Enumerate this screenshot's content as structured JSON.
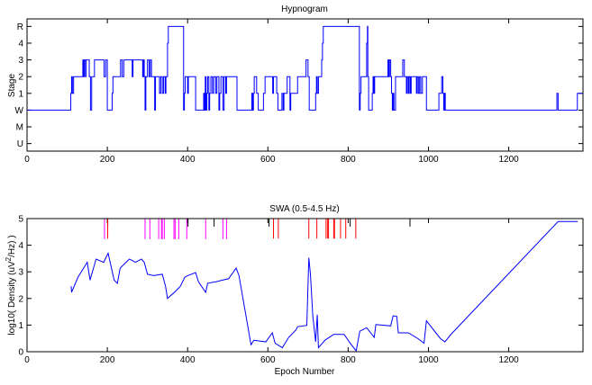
{
  "chart_data": [
    {
      "type": "line",
      "title": "Hypnogram",
      "xlabel": "",
      "ylabel": "Stage",
      "xlim": [
        0,
        1385
      ],
      "ylim": [
        -2.45,
        5.45
      ],
      "xticks": [
        0,
        200,
        400,
        600,
        800,
        1000,
        1200
      ],
      "xticklabels": [
        "0",
        "200",
        "400",
        "600",
        "800",
        "1000",
        "1200"
      ],
      "yticks": [
        5,
        4,
        3,
        2,
        1,
        0,
        -1,
        -2
      ],
      "yticklabels": [
        "R",
        "4",
        "3",
        "2",
        "1",
        "W",
        "M",
        "U"
      ],
      "grid": false,
      "color": "#0000ff",
      "step_segments": [
        [
          0,
          0
        ],
        [
          109,
          1
        ],
        [
          111,
          2
        ],
        [
          113,
          1
        ],
        [
          116,
          2
        ],
        [
          139,
          3
        ],
        [
          141,
          2
        ],
        [
          143,
          3
        ],
        [
          146,
          2
        ],
        [
          147,
          3
        ],
        [
          155,
          2
        ],
        [
          158,
          0
        ],
        [
          161,
          2
        ],
        [
          168,
          3
        ],
        [
          192,
          2
        ],
        [
          196,
          3
        ],
        [
          200,
          0
        ],
        [
          212,
          1
        ],
        [
          214,
          2
        ],
        [
          233,
          3
        ],
        [
          237,
          2
        ],
        [
          241,
          3
        ],
        [
          262,
          2
        ],
        [
          264,
          3
        ],
        [
          288,
          2
        ],
        [
          290,
          3
        ],
        [
          292,
          2
        ],
        [
          294,
          0
        ],
        [
          296,
          2
        ],
        [
          300,
          3
        ],
        [
          304,
          2
        ],
        [
          307,
          3
        ],
        [
          310,
          2
        ],
        [
          318,
          0
        ],
        [
          320,
          2
        ],
        [
          330,
          1
        ],
        [
          333,
          2
        ],
        [
          337,
          1
        ],
        [
          340,
          2
        ],
        [
          344,
          1
        ],
        [
          346,
          2
        ],
        [
          350,
          4
        ],
        [
          352,
          5
        ],
        [
          390,
          0
        ],
        [
          392,
          1
        ],
        [
          394,
          2
        ],
        [
          400,
          1
        ],
        [
          402,
          2
        ],
        [
          420,
          0
        ],
        [
          440,
          1
        ],
        [
          442,
          0
        ],
        [
          444,
          2
        ],
        [
          446,
          0
        ],
        [
          448,
          1
        ],
        [
          450,
          2
        ],
        [
          453,
          0
        ],
        [
          455,
          1
        ],
        [
          458,
          2
        ],
        [
          462,
          1
        ],
        [
          465,
          2
        ],
        [
          470,
          1
        ],
        [
          473,
          2
        ],
        [
          478,
          0
        ],
        [
          480,
          1
        ],
        [
          483,
          2
        ],
        [
          488,
          0
        ],
        [
          491,
          2
        ],
        [
          495,
          1
        ],
        [
          497,
          2
        ],
        [
          523,
          0
        ],
        [
          560,
          1
        ],
        [
          562,
          0
        ],
        [
          564,
          1
        ],
        [
          566,
          2
        ],
        [
          572,
          1
        ],
        [
          576,
          0
        ],
        [
          589,
          1
        ],
        [
          593,
          2
        ],
        [
          612,
          1
        ],
        [
          614,
          2
        ],
        [
          622,
          1
        ],
        [
          625,
          0
        ],
        [
          635,
          1
        ],
        [
          638,
          0
        ],
        [
          640,
          1
        ],
        [
          648,
          2
        ],
        [
          655,
          0
        ],
        [
          657,
          1
        ],
        [
          674,
          2
        ],
        [
          695,
          3
        ],
        [
          700,
          2
        ],
        [
          703,
          0
        ],
        [
          719,
          1
        ],
        [
          721,
          2
        ],
        [
          723,
          1
        ],
        [
          726,
          2
        ],
        [
          734,
          3
        ],
        [
          736,
          4
        ],
        [
          738,
          5
        ],
        [
          828,
          0
        ],
        [
          830,
          1
        ],
        [
          832,
          2
        ],
        [
          846,
          4
        ],
        [
          848,
          5
        ],
        [
          849,
          2
        ],
        [
          851,
          0
        ],
        [
          860,
          1
        ],
        [
          862,
          2
        ],
        [
          864,
          1
        ],
        [
          866,
          2
        ],
        [
          899,
          3
        ],
        [
          901,
          2
        ],
        [
          903,
          3
        ],
        [
          906,
          2
        ],
        [
          908,
          1
        ],
        [
          910,
          0
        ],
        [
          912,
          1
        ],
        [
          914,
          0
        ],
        [
          918,
          2
        ],
        [
          936,
          3
        ],
        [
          940,
          2
        ],
        [
          945,
          1
        ],
        [
          947,
          2
        ],
        [
          950,
          1
        ],
        [
          952,
          2
        ],
        [
          955,
          1
        ],
        [
          957,
          2
        ],
        [
          970,
          1
        ],
        [
          972,
          2
        ],
        [
          975,
          1
        ],
        [
          978,
          2
        ],
        [
          981,
          1
        ],
        [
          985,
          2
        ],
        [
          995,
          0
        ],
        [
          1026,
          1
        ],
        [
          1033,
          2
        ],
        [
          1036,
          1
        ],
        [
          1038,
          0
        ],
        [
          1040,
          1
        ],
        [
          1042,
          0
        ],
        [
          1320,
          1
        ],
        [
          1323,
          0
        ],
        [
          1371,
          1
        ],
        [
          1384,
          1
        ]
      ]
    },
    {
      "type": "line",
      "title": "SWA (0.5-4.5 Hz)",
      "xlabel": "Epoch Number",
      "ylabel_prefix": "log10( Density (uV",
      "ylabel_sup": "2",
      "ylabel_suffix": "/Hz) )",
      "xlim": [
        0,
        1385
      ],
      "ylim": [
        0,
        5
      ],
      "xticks": [
        0,
        200,
        400,
        600,
        800,
        1000,
        1200
      ],
      "xticklabels": [
        "0",
        "200",
        "400",
        "600",
        "800",
        "1000",
        "1200"
      ],
      "yticks": [
        0,
        1,
        2,
        3,
        4,
        5
      ],
      "yticklabels": [
        "0",
        "1",
        "2",
        "3",
        "4",
        "5"
      ],
      "grid": false,
      "color": "#0000ff",
      "series": [
        {
          "x": [
            110,
            111,
            127,
            150,
            157,
            172,
            191,
            202,
            217,
            225,
            232,
            255,
            270,
            285,
            292,
            300,
            315,
            337,
            345,
            350,
            367,
            382,
            393,
            401,
            420,
            427,
            445,
            450,
            472,
            487,
            502,
            521,
            528,
            558,
            565,
            595,
            611,
            618,
            636,
            652,
            670,
            674,
            697,
            702,
            706,
            712,
            719,
            723,
            726,
            742,
            764,
            790,
            805,
            820,
            829,
            846,
            865,
            869,
            906,
            912,
            921,
            925,
            950,
            974,
            989,
            995,
            1030,
            1041,
            1056,
            1323,
            1372
          ],
          "y": [
            2.46,
            2.23,
            2.8,
            3.36,
            2.69,
            3.48,
            3.36,
            3.7,
            2.69,
            2.57,
            3.14,
            3.48,
            3.36,
            3.48,
            3.36,
            2.91,
            2.86,
            2.91,
            2.46,
            2.0,
            2.23,
            2.46,
            2.8,
            2.86,
            2.97,
            2.63,
            2.23,
            2.57,
            2.63,
            2.69,
            2.74,
            3.14,
            2.86,
            0.26,
            0.43,
            0.37,
            0.71,
            0.32,
            0.15,
            0.54,
            0.82,
            0.94,
            0.99,
            3.53,
            2.91,
            1.33,
            0.37,
            1.39,
            0.15,
            0.43,
            0.65,
            0.65,
            0.32,
            0.03,
            0.77,
            0.9,
            0.54,
            1.02,
            0.97,
            1.35,
            1.33,
            0.71,
            0.71,
            0.49,
            0.32,
            1.16,
            0.49,
            0.37,
            0.65,
            4.89,
            4.89
          ]
        }
      ],
      "event_markers": [
        {
          "color": "#ff00ff",
          "y_from": 5,
          "y_to": 4.23,
          "x": [
            193,
            294,
            306,
            328,
            335,
            337,
            342,
            366,
            369,
            378,
            398,
            445,
            488,
            497
          ]
        },
        {
          "color": "#000000",
          "y_from": 5,
          "y_to": 4.7,
          "x": [
            201,
            401,
            466,
            603,
            805,
            954
          ]
        },
        {
          "color": "#ff0000",
          "y_from": 5,
          "y_to": 4.25,
          "x": [
            201,
            614,
            626,
            702,
            722,
            745,
            749,
            751,
            764,
            766,
            781,
            794,
            819
          ]
        }
      ]
    }
  ]
}
